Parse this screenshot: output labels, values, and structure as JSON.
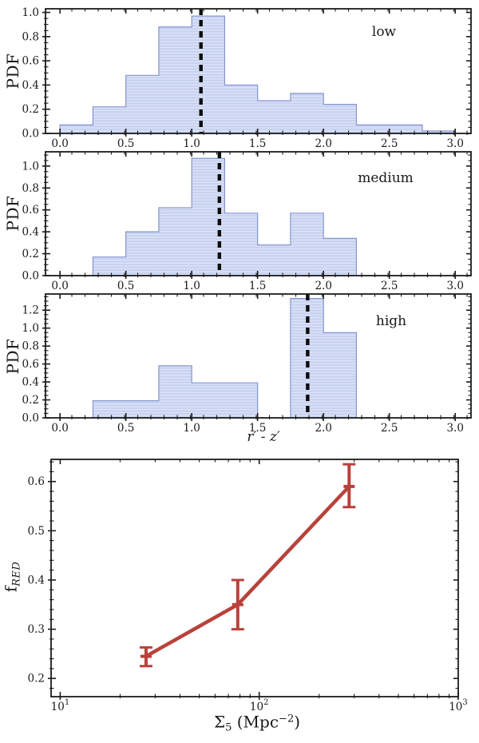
{
  "figure": {
    "background": "#ffffff",
    "text_color": "#1a1a1a"
  },
  "style": {
    "axis_color": "#1b1b1b",
    "hist_fill": "#c8d2f0",
    "hist_stripe": "#e4eaf9",
    "hist_edge": "#8494cf",
    "dash_color": "#0d0d0d",
    "line_color": "#b8423b"
  },
  "chart_data": [
    {
      "type": "bar",
      "subtype": "histogram",
      "panel_label": "low",
      "ylabel": "PDF",
      "bin_start": 0.0,
      "bin_width": 0.25,
      "values": [
        0.07,
        0.22,
        0.48,
        0.88,
        0.97,
        0.4,
        0.27,
        0.33,
        0.24,
        0.07,
        0.07,
        0.02
      ],
      "dashed_line_x": 1.07,
      "xlim": [
        -0.11,
        3.12
      ],
      "ylim": [
        0,
        1.03
      ],
      "xticks": [
        0.0,
        0.5,
        1.0,
        1.5,
        2.0,
        2.5,
        3.0
      ],
      "yticks": [
        0.0,
        0.2,
        0.4,
        0.6,
        0.8,
        1.0
      ],
      "x_minor_step": 0.1,
      "y_minor_step": 0.05
    },
    {
      "type": "bar",
      "subtype": "histogram",
      "panel_label": "medium",
      "ylabel": "PDF",
      "bin_start": 0.25,
      "bin_width": 0.25,
      "values": [
        0.17,
        0.4,
        0.62,
        1.07,
        0.57,
        0.28,
        0.57,
        0.34
      ],
      "dashed_line_x": 1.21,
      "xlim": [
        -0.11,
        3.12
      ],
      "ylim": [
        0,
        1.13
      ],
      "xticks": [
        0.0,
        0.5,
        1.0,
        1.5,
        2.0,
        2.5,
        3.0
      ],
      "yticks": [
        0.0,
        0.2,
        0.4,
        0.6,
        0.8,
        1.0
      ],
      "x_minor_step": 0.1,
      "y_minor_step": 0.05
    },
    {
      "type": "bar",
      "subtype": "histogram",
      "panel_label": "high",
      "ylabel": "PDF",
      "xlabel": "r′ - z′",
      "bin_start": 0.25,
      "bin_width": 0.25,
      "values": [
        0.19,
        0.19,
        0.58,
        0.39,
        0.39,
        0.0,
        1.33,
        0.95
      ],
      "dashed_line_x": 1.88,
      "xlim": [
        -0.11,
        3.12
      ],
      "ylim": [
        0,
        1.38
      ],
      "xticks": [
        0.0,
        0.5,
        1.0,
        1.5,
        2.0,
        2.5,
        3.0
      ],
      "yticks": [
        0.0,
        0.2,
        0.4,
        0.6,
        0.8,
        1.0,
        1.2
      ],
      "x_minor_step": 0.1,
      "y_minor_step": 0.05
    },
    {
      "type": "line",
      "xscale": "log",
      "ylabel_main": "f",
      "ylabel_sub": "RED",
      "xlabel_sym": "Σ",
      "xlabel_sub": "5",
      "xlabel_unit": " (Mpc",
      "xlabel_sup": "−2",
      "xlabel_close": ")",
      "x": [
        27,
        78,
        283
      ],
      "y": [
        0.245,
        0.35,
        0.59
      ],
      "y_err_low": [
        0.225,
        0.3,
        0.548
      ],
      "y_err_high": [
        0.263,
        0.4,
        0.635
      ],
      "xlim": [
        9,
        1000
      ],
      "ylim": [
        0.163,
        0.645
      ],
      "xticks": [
        10,
        100,
        1000
      ],
      "yticks": [
        0.2,
        0.3,
        0.4,
        0.5,
        0.6
      ],
      "y_minor_step": 0.02
    }
  ]
}
